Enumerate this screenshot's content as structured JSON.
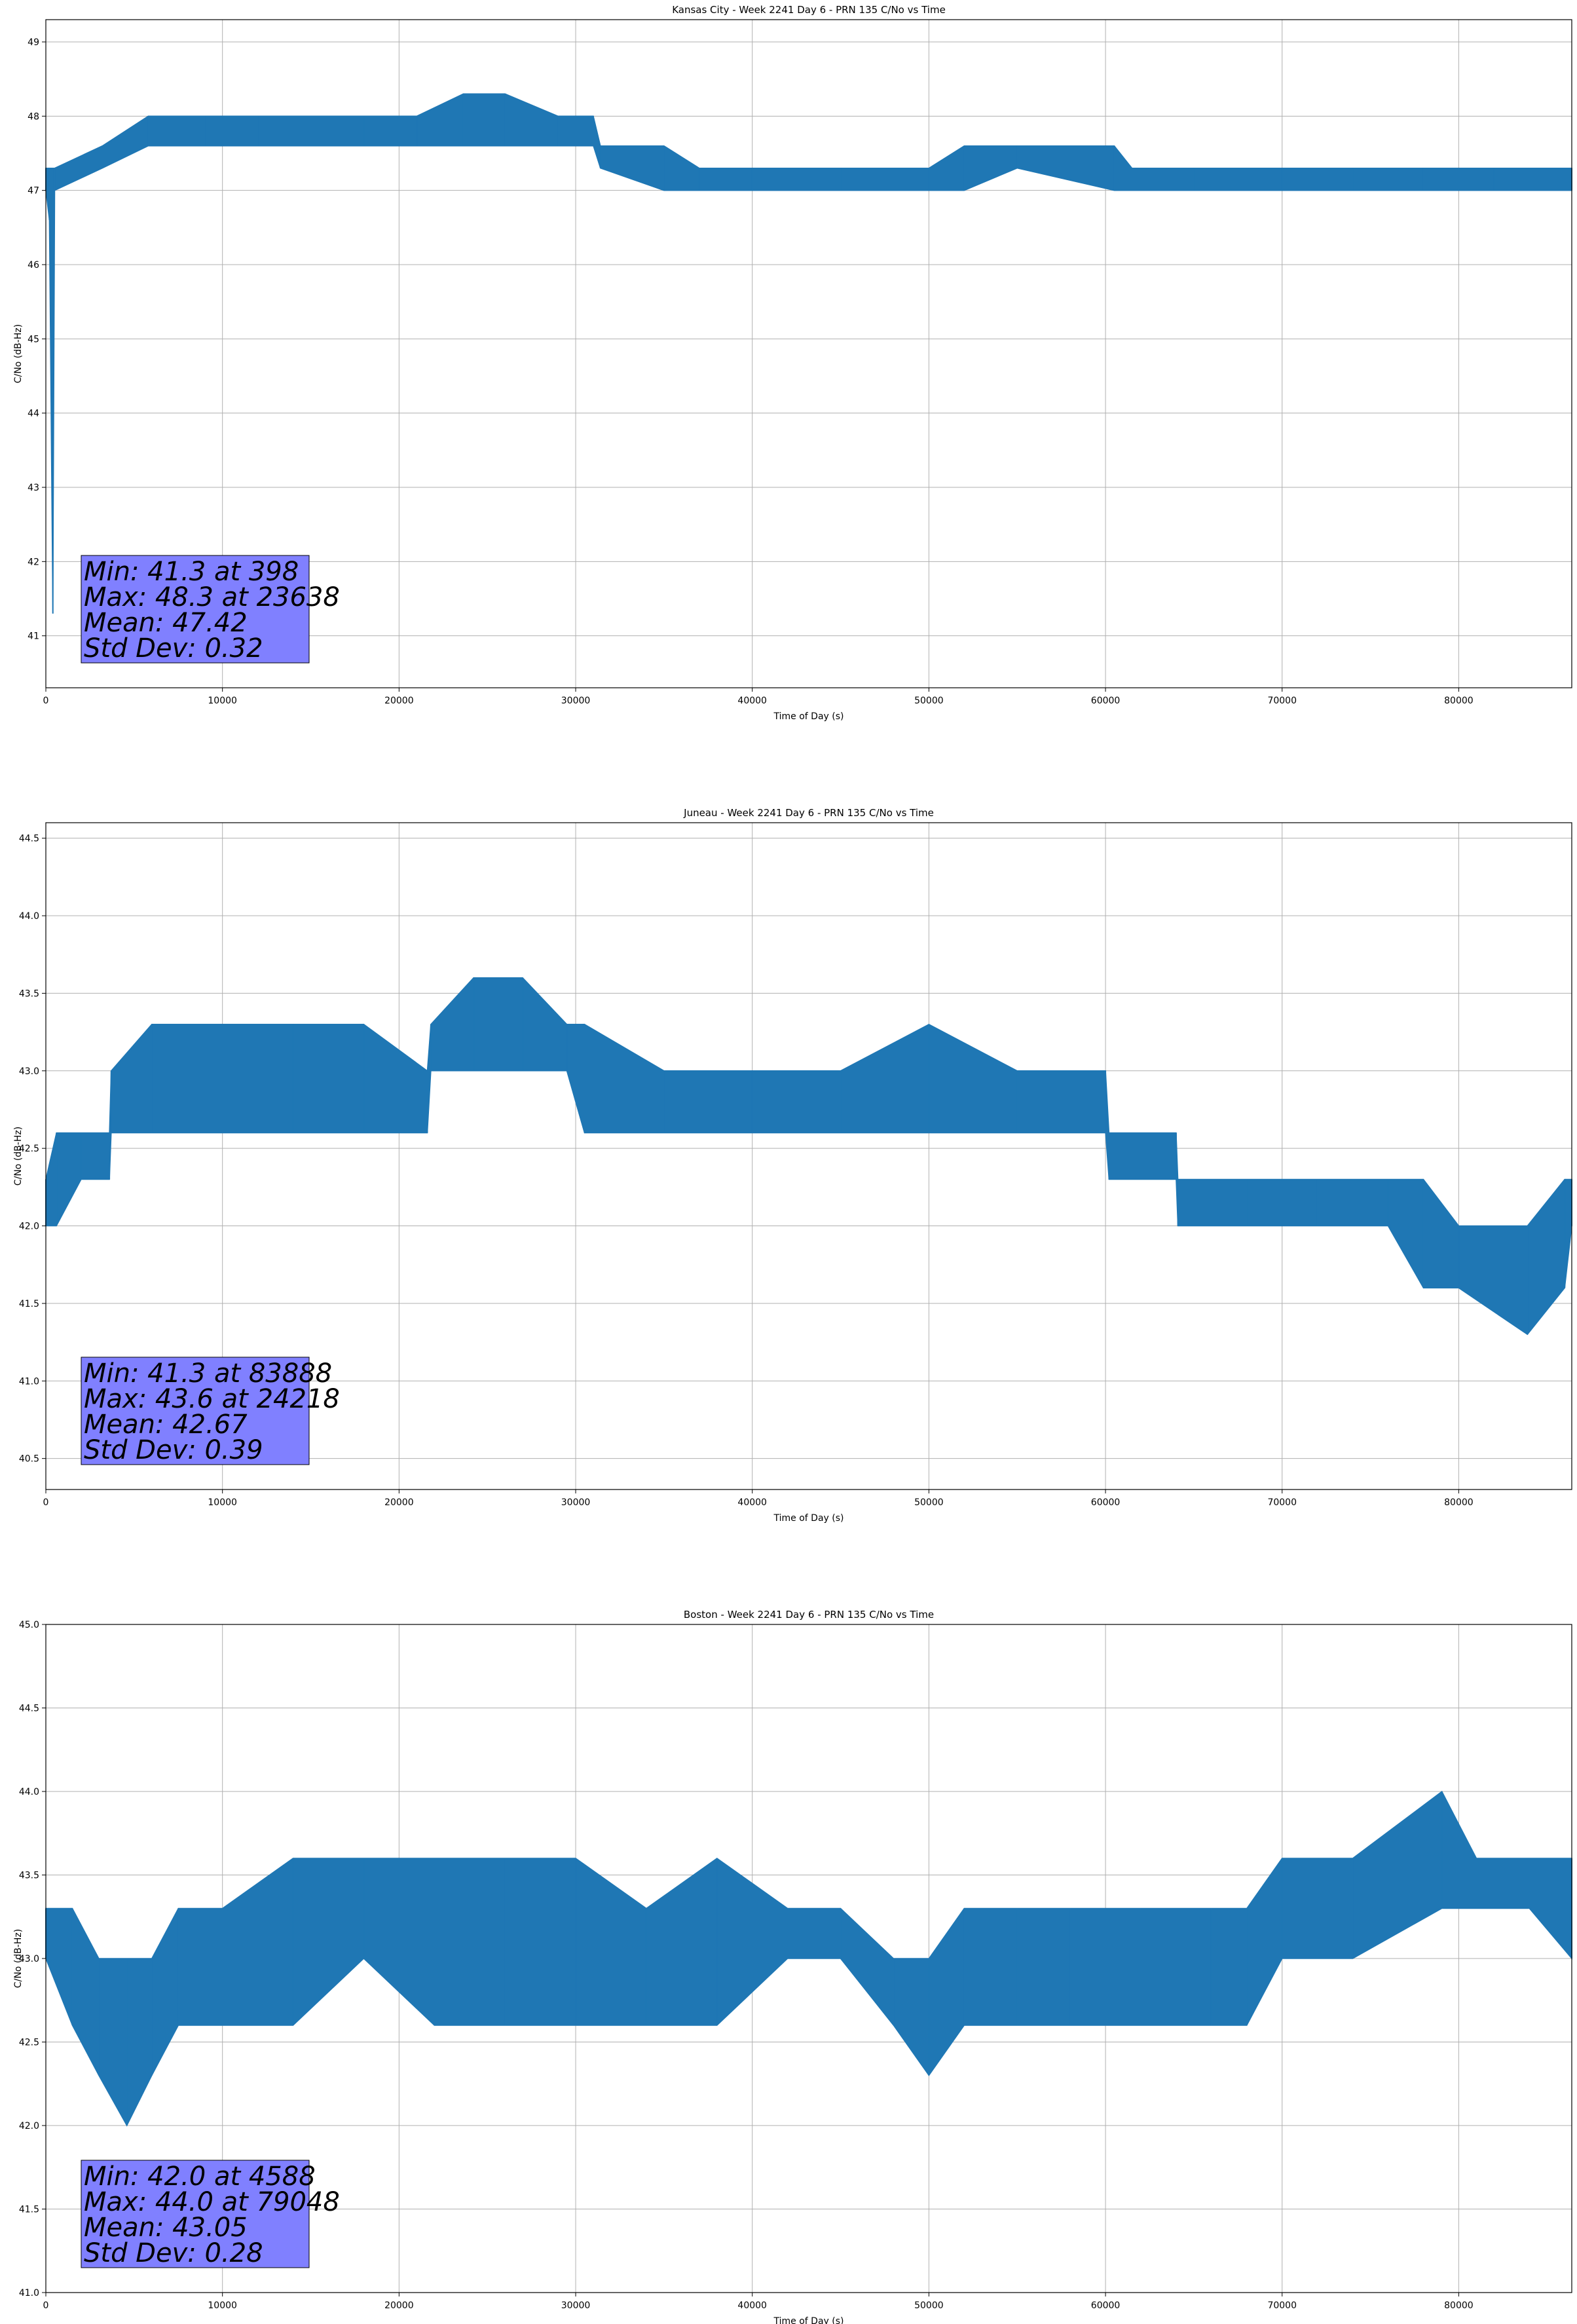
{
  "chart_data": [
    {
      "type": "line",
      "title": "Kansas City - Week 2241 Day 6 - PRN 135 C/No vs Time",
      "xlabel": "Time of Day (s)",
      "ylabel": "C/No (dB-Hz)",
      "xlim": [
        0,
        86400
      ],
      "ylim": [
        40.3,
        49.3
      ],
      "xticks": [
        0,
        10000,
        20000,
        30000,
        40000,
        50000,
        60000,
        70000,
        80000
      ],
      "yticks": [
        41,
        42,
        43,
        44,
        45,
        46,
        47,
        48,
        49
      ],
      "grid": true,
      "color": "#1f77b4",
      "series": [
        {
          "x": [
            0,
            200,
            398,
            500,
            3200,
            5800,
            9000,
            12000,
            15000,
            18000,
            21000,
            23638,
            26000,
            29000,
            31000,
            31400,
            35000,
            37000,
            40000,
            45000,
            50000,
            52000,
            55000,
            60500,
            61500,
            65000,
            70000,
            74000,
            78000,
            82000,
            86400
          ],
          "low": [
            47.0,
            46.6,
            41.3,
            47.0,
            47.3,
            47.6,
            47.6,
            47.6,
            47.6,
            47.6,
            47.6,
            47.6,
            47.6,
            47.6,
            47.6,
            47.3,
            47.0,
            47.0,
            47.0,
            47.0,
            47.0,
            47.0,
            47.3,
            47.0,
            47.0,
            47.0,
            47.0,
            47.0,
            47.0,
            47.0,
            47.0
          ],
          "high": [
            47.3,
            47.3,
            47.3,
            47.3,
            47.6,
            48.0,
            48.0,
            48.0,
            48.0,
            48.0,
            48.0,
            48.3,
            48.3,
            48.0,
            48.0,
            47.6,
            47.6,
            47.3,
            47.3,
            47.3,
            47.3,
            47.6,
            47.6,
            47.6,
            47.3,
            47.3,
            47.3,
            47.3,
            47.3,
            47.3,
            47.3
          ]
        }
      ],
      "stats": {
        "min": "Min: 41.3 at 398",
        "max": "Max: 48.3 at 23638",
        "mean": "Mean: 47.42",
        "std": "Std Dev: 0.32"
      },
      "stats_box_color": "#8080ff"
    },
    {
      "type": "line",
      "title": "Juneau - Week 2241 Day 6 - PRN 135 C/No vs Time",
      "xlabel": "Time of Day (s)",
      "ylabel": "C/No (dB-Hz)",
      "xlim": [
        0,
        86400
      ],
      "ylim": [
        40.3,
        44.6
      ],
      "xticks": [
        0,
        10000,
        20000,
        30000,
        40000,
        50000,
        60000,
        70000,
        80000
      ],
      "yticks": [
        40.5,
        41.0,
        41.5,
        42.0,
        42.5,
        43.0,
        43.5,
        44.0,
        44.5
      ],
      "grid": true,
      "color": "#1f77b4",
      "series": [
        {
          "x": [
            0,
            600,
            2000,
            3600,
            3700,
            6000,
            10000,
            14000,
            18000,
            21600,
            21800,
            24218,
            27000,
            29500,
            30500,
            35000,
            40000,
            45000,
            50000,
            55000,
            60000,
            60200,
            64000,
            64100,
            68000,
            72000,
            76000,
            78000,
            80000,
            83888,
            86000,
            86400
          ],
          "low": [
            42.0,
            42.0,
            42.3,
            42.3,
            42.6,
            42.6,
            42.6,
            42.6,
            42.6,
            42.6,
            43.0,
            43.0,
            43.0,
            43.0,
            42.6,
            42.6,
            42.6,
            42.6,
            42.6,
            42.6,
            42.6,
            42.3,
            42.3,
            42.0,
            42.0,
            42.0,
            42.0,
            41.6,
            41.6,
            41.3,
            41.6,
            42.0
          ],
          "high": [
            42.3,
            42.6,
            42.6,
            42.6,
            43.0,
            43.3,
            43.3,
            43.3,
            43.3,
            43.0,
            43.3,
            43.6,
            43.6,
            43.3,
            43.3,
            43.0,
            43.0,
            43.0,
            43.3,
            43.0,
            43.0,
            42.6,
            42.6,
            42.3,
            42.3,
            42.3,
            42.3,
            42.3,
            42.0,
            42.0,
            42.3,
            42.3
          ]
        }
      ],
      "stats": {
        "min": "Min: 41.3 at 83888",
        "max": "Max: 43.6 at 24218",
        "mean": "Mean: 42.67",
        "std": "Std Dev: 0.39"
      },
      "stats_box_color": "#8080ff"
    },
    {
      "type": "line",
      "title": "Boston - Week 2241 Day 6 - PRN 135 C/No vs Time",
      "xlabel": "Time of Day (s)",
      "ylabel": "C/No (dB-Hz)",
      "xlim": [
        0,
        86400
      ],
      "ylim": [
        41.0,
        45.0
      ],
      "xticks": [
        0,
        10000,
        20000,
        30000,
        40000,
        50000,
        60000,
        70000,
        80000
      ],
      "yticks": [
        41.0,
        41.5,
        42.0,
        42.5,
        43.0,
        43.5,
        44.0,
        44.5,
        45.0
      ],
      "grid": true,
      "color": "#1f77b4",
      "series": [
        {
          "x": [
            0,
            1500,
            3000,
            4588,
            6000,
            7500,
            10000,
            14000,
            18000,
            22000,
            26000,
            30000,
            34000,
            38000,
            42000,
            45000,
            48000,
            50000,
            52000,
            55000,
            58000,
            62000,
            66000,
            68000,
            70000,
            74000,
            79048,
            81000,
            84000,
            86400
          ],
          "low": [
            43.0,
            42.6,
            42.3,
            42.0,
            42.3,
            42.6,
            42.6,
            42.6,
            43.0,
            42.6,
            42.6,
            42.6,
            42.6,
            42.6,
            43.0,
            43.0,
            42.6,
            42.3,
            42.6,
            42.6,
            42.6,
            42.6,
            42.6,
            42.6,
            43.0,
            43.0,
            43.3,
            43.3,
            43.3,
            43.0
          ],
          "high": [
            43.3,
            43.3,
            43.0,
            43.0,
            43.0,
            43.3,
            43.3,
            43.6,
            43.6,
            43.6,
            43.6,
            43.6,
            43.3,
            43.6,
            43.3,
            43.3,
            43.0,
            43.0,
            43.3,
            43.3,
            43.3,
            43.3,
            43.3,
            43.3,
            43.6,
            43.6,
            44.0,
            43.6,
            43.6,
            43.6
          ]
        }
      ],
      "stats": {
        "min": "Min: 42.0 at 4588",
        "max": "Max: 44.0 at 79048",
        "mean": "Mean: 43.05",
        "std": "Std Dev: 0.28"
      },
      "stats_box_color": "#8080ff"
    }
  ]
}
